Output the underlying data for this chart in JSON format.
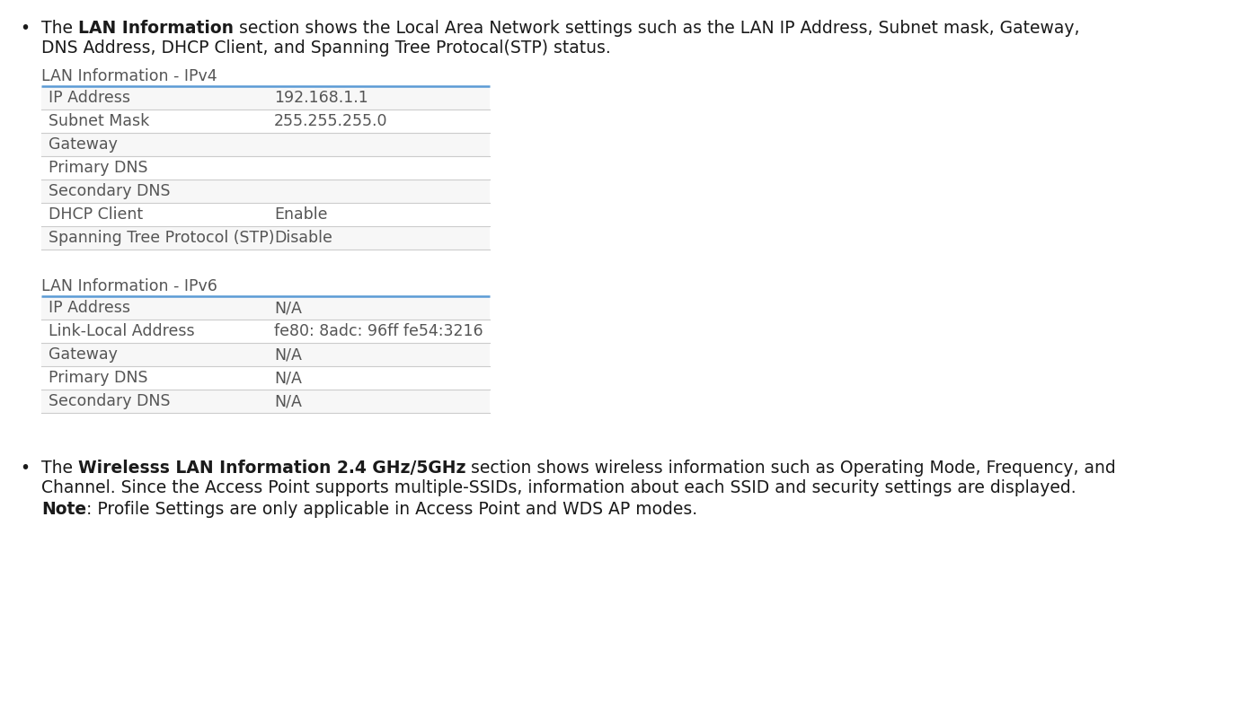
{
  "bg_color": "#ffffff",
  "text_color": "#1a1a1a",
  "gray_text": "#555555",
  "line_color": "#cccccc",
  "blue_line_color": "#5b9bd5",
  "table_row_alt": "#f7f7f7",
  "ipv4_header": "LAN Information - IPv4",
  "ipv4_rows": [
    [
      "IP Address",
      "192.168.1.1"
    ],
    [
      "Subnet Mask",
      "255.255.255.0"
    ],
    [
      "Gateway",
      ""
    ],
    [
      "Primary DNS",
      ""
    ],
    [
      "Secondary DNS",
      ""
    ],
    [
      "DHCP Client",
      "Enable"
    ],
    [
      "Spanning Tree Protocol (STP)",
      "Disable"
    ]
  ],
  "ipv6_header": "LAN Information - IPv6",
  "ipv6_rows": [
    [
      "IP Address",
      "N/A"
    ],
    [
      "Link-Local Address",
      "fe80: 8adc: 96ff fe54:3216"
    ],
    [
      "Gateway",
      "N/A"
    ],
    [
      "Primary DNS",
      "N/A"
    ],
    [
      "Secondary DNS",
      "N/A"
    ]
  ],
  "bullet1_pre": "The ",
  "bullet1_bold": "LAN Information",
  "bullet1_post": " section shows the Local Area Network settings such as the LAN IP Address, Subnet mask, Gateway,",
  "bullet1_line2": "DNS Address, DHCP Client, and Spanning Tree Protocal(STP) status.",
  "bullet2_pre": "The ",
  "bullet2_bold": "Wirelesss LAN Information 2.4 GHz/5GHz",
  "bullet2_post": " section shows wireless information such as Operating Mode, Frequency, and",
  "bullet2_line2": "Channel. Since the Access Point supports multiple-SSIDs, information about each SSID and security settings are displayed.",
  "note_bold": "Note",
  "note_rest": ": Profile Settings are only applicable in Access Point and WDS AP modes.",
  "fig_width": 14.0,
  "fig_height": 7.81,
  "dpi": 100
}
